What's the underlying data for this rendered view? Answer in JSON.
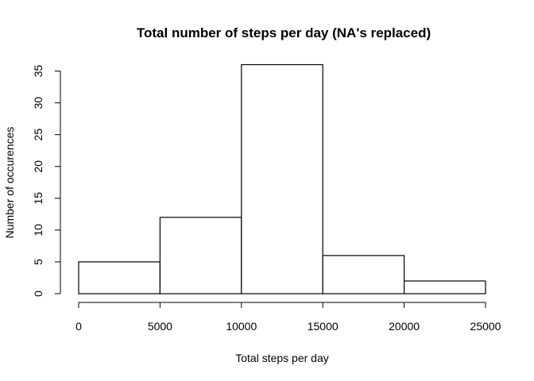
{
  "chart_data": {
    "type": "bar",
    "title": "Total number of steps per day (NA's replaced)",
    "xlabel": "Total steps per day",
    "ylabel": "Number of occurences",
    "bins": [
      {
        "from": 0,
        "to": 5000,
        "count": 5
      },
      {
        "from": 5000,
        "to": 10000,
        "count": 12
      },
      {
        "from": 10000,
        "to": 15000,
        "count": 36
      },
      {
        "from": 15000,
        "to": 20000,
        "count": 6
      },
      {
        "from": 20000,
        "to": 25000,
        "count": 2
      }
    ],
    "xticks": [
      "0",
      "5000",
      "10000",
      "15000",
      "20000",
      "25000"
    ],
    "yticks": [
      "0",
      "5",
      "10",
      "15",
      "20",
      "25",
      "30",
      "35"
    ],
    "xlim": [
      0,
      25000
    ],
    "ylim": [
      0,
      35
    ],
    "grid": false,
    "colors": {
      "bar_fill": "#ffffff",
      "bar_stroke": "#000000"
    }
  }
}
